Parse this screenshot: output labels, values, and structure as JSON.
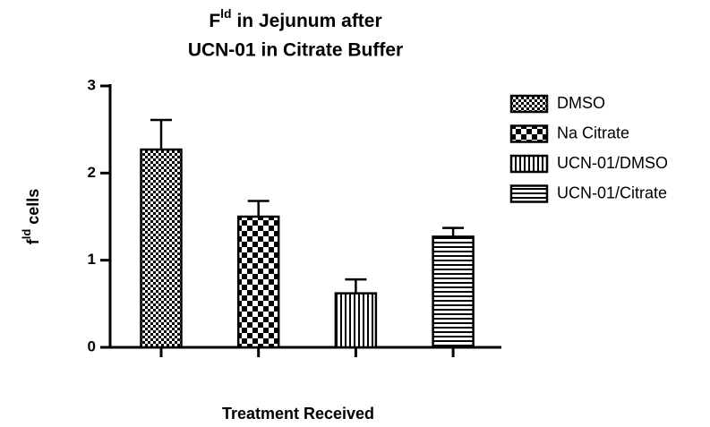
{
  "chart_data": {
    "type": "bar",
    "title_parts": [
      "F",
      "ld",
      " in Jejunum  after",
      "UCN-01 in Citrate Buffer"
    ],
    "ylabel_parts": [
      "f",
      "ld",
      " cells"
    ],
    "xlabel": "Treatment Received",
    "categories": [
      "DMSO",
      "Na Citrate",
      "UCN-01/DMSO",
      "UCN-01/Citrate"
    ],
    "values": [
      2.27,
      1.5,
      0.62,
      1.27
    ],
    "errors": [
      0.34,
      0.18,
      0.16,
      0.1
    ],
    "patterns": [
      "fine-checker",
      "checker",
      "vertical-stripes",
      "horizontal-stripes"
    ],
    "ylim": [
      0,
      3
    ],
    "yticks": [
      0,
      1,
      2,
      3
    ],
    "grid": false
  }
}
